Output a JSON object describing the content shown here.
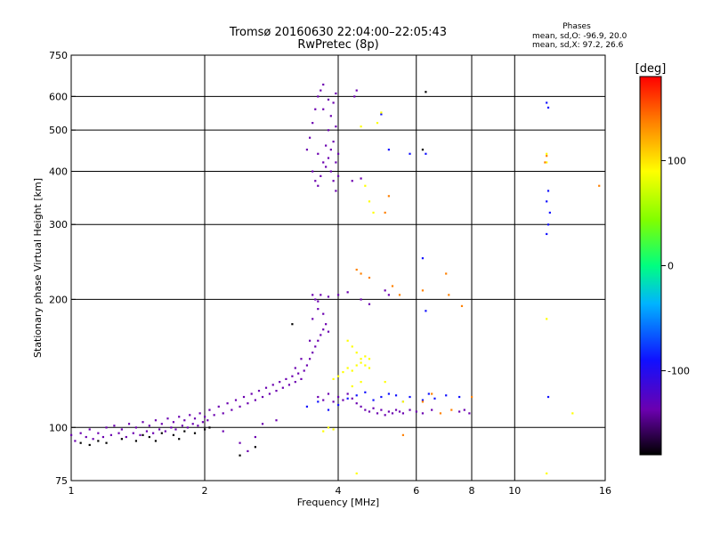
{
  "chart_data": {
    "type": "scatter",
    "title": "Tromsø 20160630 22:04:00–22:05:43",
    "subtitle": "RwPretec (8p)",
    "phase_header": "Phases",
    "phase_o": "mean, sd,O: -96.9, 20.0",
    "phase_x": "mean, sd,X:  97.2, 26.6",
    "xlabel": "Frequency [MHz]",
    "ylabel": "Stationary phase Virtual Height [km]",
    "x_scale": "log",
    "y_scale": "log",
    "xlim": [
      1,
      16
    ],
    "ylim": [
      75,
      750
    ],
    "x_ticks": [
      1,
      2,
      4,
      6,
      8,
      10,
      16
    ],
    "x_tick_labels": [
      "1",
      "2",
      "4",
      "6",
      "8",
      "10",
      "16"
    ],
    "y_ticks": [
      75,
      100,
      200,
      300,
      400,
      500,
      600,
      750
    ],
    "y_tick_labels": [
      "75",
      "100",
      "200",
      "300",
      "400",
      "500",
      "600",
      "750"
    ],
    "grid_x": [
      2,
      4,
      6,
      8,
      10
    ],
    "grid_y": [
      100,
      200,
      300,
      400,
      500,
      600
    ],
    "colorbar": {
      "label": "[deg]",
      "range": [
        -180,
        180
      ],
      "ticks": [
        100,
        0,
        -100
      ],
      "tick_labels": [
        "100",
        "0",
        "-100"
      ]
    },
    "series": [
      {
        "phase": -100,
        "points": [
          [
            1.0,
            96
          ],
          [
            1.02,
            93
          ],
          [
            1.05,
            97
          ],
          [
            1.08,
            95
          ],
          [
            1.1,
            99
          ],
          [
            1.12,
            94
          ],
          [
            1.15,
            97
          ],
          [
            1.18,
            95
          ],
          [
            1.2,
            100
          ],
          [
            1.23,
            96
          ],
          [
            1.25,
            101
          ],
          [
            1.28,
            97
          ],
          [
            1.3,
            99
          ],
          [
            1.33,
            95
          ],
          [
            1.35,
            102
          ],
          [
            1.38,
            97
          ],
          [
            1.4,
            100
          ],
          [
            1.43,
            96
          ],
          [
            1.45,
            103
          ],
          [
            1.48,
            98
          ],
          [
            1.5,
            101
          ],
          [
            1.53,
            97
          ],
          [
            1.55,
            104
          ],
          [
            1.58,
            99
          ],
          [
            1.6,
            102
          ],
          [
            1.63,
            98
          ],
          [
            1.65,
            105
          ],
          [
            1.68,
            100
          ],
          [
            1.7,
            103
          ],
          [
            1.72,
            99
          ],
          [
            1.75,
            106
          ],
          [
            1.78,
            101
          ],
          [
            1.8,
            104
          ],
          [
            1.83,
            100
          ],
          [
            1.85,
            107
          ],
          [
            1.88,
            102
          ],
          [
            1.9,
            105
          ],
          [
            1.93,
            101
          ],
          [
            1.95,
            108
          ],
          [
            1.98,
            103
          ],
          [
            2.0,
            106
          ],
          [
            2.03,
            104
          ],
          [
            2.05,
            110
          ],
          [
            2.1,
            107
          ],
          [
            2.15,
            112
          ],
          [
            2.2,
            108
          ],
          [
            2.25,
            114
          ],
          [
            2.3,
            110
          ],
          [
            2.35,
            116
          ],
          [
            2.4,
            112
          ],
          [
            2.45,
            118
          ],
          [
            2.5,
            114
          ],
          [
            2.55,
            120
          ],
          [
            2.6,
            116
          ],
          [
            2.65,
            122
          ],
          [
            2.7,
            118
          ],
          [
            2.75,
            124
          ],
          [
            2.8,
            120
          ],
          [
            2.85,
            126
          ],
          [
            2.9,
            122
          ],
          [
            2.95,
            128
          ],
          [
            3.0,
            124
          ],
          [
            3.05,
            130
          ],
          [
            3.1,
            126
          ],
          [
            3.15,
            132
          ],
          [
            3.2,
            128
          ],
          [
            3.25,
            134
          ],
          [
            3.3,
            130
          ],
          [
            3.35,
            136
          ],
          [
            3.4,
            140
          ],
          [
            3.45,
            145
          ],
          [
            3.5,
            150
          ],
          [
            3.55,
            155
          ],
          [
            3.6,
            160
          ],
          [
            3.65,
            165
          ],
          [
            3.7,
            170
          ],
          [
            3.75,
            175
          ],
          [
            3.8,
            168
          ],
          [
            3.5,
            180
          ],
          [
            3.6,
            190
          ],
          [
            3.55,
            200
          ],
          [
            3.65,
            205
          ],
          [
            3.7,
            185
          ],
          [
            3.45,
            160
          ],
          [
            3.3,
            145
          ],
          [
            3.2,
            138
          ],
          [
            2.2,
            98
          ],
          [
            2.4,
            92
          ],
          [
            2.6,
            95
          ],
          [
            2.7,
            102
          ],
          [
            2.5,
            88
          ],
          [
            2.9,
            104
          ]
        ]
      },
      {
        "phase": -110,
        "points": [
          [
            3.4,
            450
          ],
          [
            3.45,
            480
          ],
          [
            3.5,
            520
          ],
          [
            3.55,
            560
          ],
          [
            3.6,
            600
          ],
          [
            3.65,
            620
          ],
          [
            3.7,
            640
          ],
          [
            3.5,
            400
          ],
          [
            3.55,
            380
          ],
          [
            3.6,
            370
          ],
          [
            3.65,
            390
          ],
          [
            3.7,
            420
          ],
          [
            3.75,
            460
          ],
          [
            3.8,
            500
          ],
          [
            3.85,
            540
          ],
          [
            3.9,
            580
          ],
          [
            3.95,
            610
          ],
          [
            3.9,
            380
          ],
          [
            3.85,
            400
          ],
          [
            3.8,
            430
          ],
          [
            3.9,
            470
          ],
          [
            3.95,
            510
          ],
          [
            4.0,
            440
          ],
          [
            4.0,
            390
          ],
          [
            3.95,
            360
          ],
          [
            4.3,
            380
          ],
          [
            4.35,
            600
          ],
          [
            4.4,
            620
          ],
          [
            4.5,
            385
          ],
          [
            3.7,
            560
          ],
          [
            3.8,
            590
          ],
          [
            3.75,
            410
          ],
          [
            3.6,
            440
          ],
          [
            3.85,
            450
          ],
          [
            3.95,
            420
          ]
        ]
      },
      {
        "phase": -95,
        "points": [
          [
            3.6,
            118
          ],
          [
            3.7,
            116
          ],
          [
            3.8,
            120
          ],
          [
            3.9,
            115
          ],
          [
            4.0,
            118
          ],
          [
            4.1,
            116
          ],
          [
            4.2,
            120
          ],
          [
            4.3,
            117
          ],
          [
            4.4,
            114
          ],
          [
            4.5,
            112
          ],
          [
            4.6,
            110
          ],
          [
            4.7,
            109
          ],
          [
            4.8,
            111
          ],
          [
            4.9,
            108
          ],
          [
            5.0,
            110
          ],
          [
            5.1,
            107
          ],
          [
            5.2,
            109
          ],
          [
            5.3,
            108
          ],
          [
            5.4,
            110
          ],
          [
            5.5,
            109
          ],
          [
            5.6,
            108
          ],
          [
            5.8,
            110
          ],
          [
            6.0,
            109
          ],
          [
            6.2,
            108
          ],
          [
            6.5,
            110
          ],
          [
            7.5,
            109
          ],
          [
            7.7,
            110
          ],
          [
            7.9,
            108
          ],
          [
            3.8,
            203
          ],
          [
            4.0,
            205
          ],
          [
            4.2,
            208
          ],
          [
            4.5,
            200
          ],
          [
            4.7,
            195
          ],
          [
            5.1,
            210
          ],
          [
            5.2,
            205
          ],
          [
            3.5,
            205
          ],
          [
            3.6,
            198
          ]
        ]
      },
      {
        "phase": -60,
        "points": [
          [
            3.4,
            112
          ],
          [
            3.6,
            115
          ],
          [
            3.8,
            110
          ],
          [
            4.0,
            113
          ],
          [
            4.2,
            117
          ],
          [
            4.4,
            119
          ],
          [
            4.6,
            121
          ],
          [
            4.8,
            116
          ],
          [
            5.0,
            118
          ],
          [
            5.2,
            120
          ],
          [
            5.4,
            119
          ],
          [
            5.6,
            115
          ],
          [
            5.8,
            118
          ],
          [
            6.2,
            116
          ],
          [
            6.4,
            120
          ],
          [
            6.6,
            117
          ],
          [
            7.0,
            119
          ],
          [
            7.5,
            118
          ],
          [
            11.8,
            580
          ],
          [
            11.9,
            565
          ],
          [
            11.9,
            360
          ],
          [
            11.8,
            340
          ],
          [
            12.0,
            320
          ],
          [
            11.9,
            300
          ],
          [
            11.8,
            285
          ],
          [
            11.9,
            118
          ],
          [
            6.2,
            250
          ],
          [
            6.3,
            188
          ],
          [
            5.0,
            545
          ],
          [
            5.2,
            450
          ],
          [
            5.8,
            440
          ],
          [
            6.3,
            440
          ]
        ]
      },
      {
        "phase": 110,
        "points": [
          [
            3.9,
            130
          ],
          [
            4.0,
            132
          ],
          [
            4.1,
            135
          ],
          [
            4.2,
            138
          ],
          [
            4.3,
            136
          ],
          [
            4.4,
            140
          ],
          [
            4.5,
            142
          ],
          [
            4.6,
            140
          ],
          [
            4.7,
            138
          ],
          [
            4.5,
            145
          ],
          [
            4.6,
            147
          ],
          [
            4.4,
            150
          ],
          [
            4.2,
            160
          ],
          [
            4.3,
            155
          ],
          [
            4.7,
            145
          ],
          [
            4.5,
            128
          ],
          [
            4.3,
            125
          ],
          [
            3.7,
            98
          ],
          [
            3.8,
            100
          ],
          [
            3.9,
            99
          ],
          [
            4.6,
            370
          ],
          [
            4.7,
            340
          ],
          [
            5.0,
            550
          ],
          [
            4.9,
            520
          ],
          [
            4.5,
            510
          ],
          [
            4.8,
            320
          ],
          [
            5.1,
            128
          ],
          [
            5.6,
            115
          ],
          [
            13.5,
            108
          ],
          [
            11.8,
            440
          ],
          [
            11.8,
            420
          ],
          [
            11.8,
            180
          ],
          [
            11.8,
            78
          ],
          [
            4.4,
            78
          ]
        ]
      },
      {
        "phase": 150,
        "points": [
          [
            4.4,
            235
          ],
          [
            4.5,
            230
          ],
          [
            4.7,
            225
          ],
          [
            5.3,
            215
          ],
          [
            5.5,
            205
          ],
          [
            6.2,
            210
          ],
          [
            7.0,
            230
          ],
          [
            7.1,
            205
          ],
          [
            7.6,
            193
          ],
          [
            8.0,
            118
          ],
          [
            5.6,
            96
          ],
          [
            5.2,
            350
          ],
          [
            5.1,
            320
          ],
          [
            11.8,
            435
          ],
          [
            11.7,
            420
          ],
          [
            15.5,
            370
          ],
          [
            6.2,
            115
          ],
          [
            6.5,
            120
          ],
          [
            6.8,
            108
          ],
          [
            7.2,
            110
          ]
        ]
      },
      {
        "phase": -150,
        "points": [
          [
            1.05,
            92
          ],
          [
            1.1,
            91
          ],
          [
            1.15,
            93
          ],
          [
            1.2,
            92
          ],
          [
            1.3,
            94
          ],
          [
            1.4,
            93
          ],
          [
            1.45,
            96
          ],
          [
            1.5,
            95
          ],
          [
            1.55,
            93
          ],
          [
            1.6,
            97
          ],
          [
            1.7,
            96
          ],
          [
            1.75,
            94
          ],
          [
            1.8,
            98
          ],
          [
            1.9,
            97
          ],
          [
            2.0,
            99
          ],
          [
            2.05,
            100
          ],
          [
            3.15,
            175
          ],
          [
            6.3,
            615
          ],
          [
            6.2,
            450
          ],
          [
            2.4,
            86
          ],
          [
            2.6,
            90
          ]
        ]
      }
    ]
  }
}
